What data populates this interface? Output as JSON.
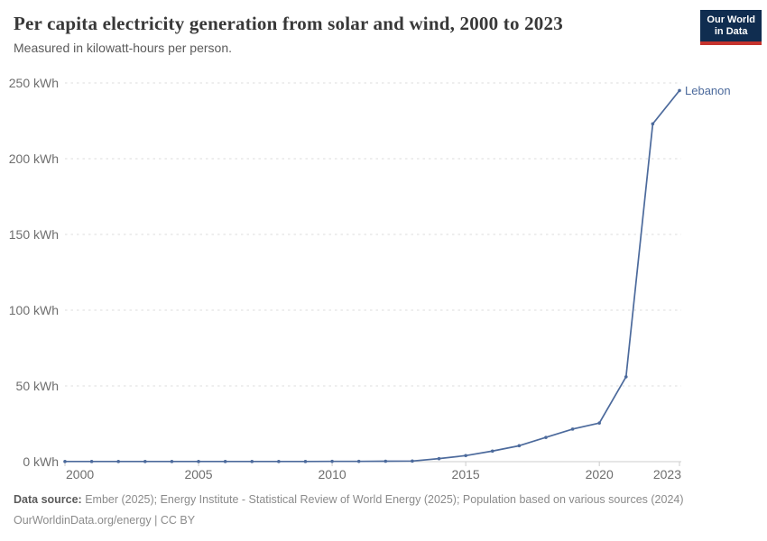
{
  "header": {
    "title": "Per capita electricity generation from solar and wind, 2000 to 2023",
    "subtitle": "Measured in kilowatt-hours per person."
  },
  "logo": {
    "line1": "Our World",
    "line2": "in Data",
    "bg_color": "#102d50",
    "accent_color": "#c5332d"
  },
  "chart_data": {
    "type": "line",
    "title": "Per capita electricity generation from solar and wind, 2000 to 2023",
    "subtitle": "Measured in kilowatt-hours per person.",
    "x": [
      2000,
      2001,
      2002,
      2003,
      2004,
      2005,
      2006,
      2007,
      2008,
      2009,
      2010,
      2011,
      2012,
      2013,
      2014,
      2015,
      2016,
      2017,
      2018,
      2019,
      2020,
      2021,
      2022,
      2023
    ],
    "series": [
      {
        "name": "Lebanon",
        "color": "#4c6a9c",
        "values": [
          0.1,
          0.1,
          0.1,
          0.1,
          0.1,
          0.1,
          0.1,
          0.1,
          0.1,
          0.1,
          0.2,
          0.2,
          0.3,
          0.4,
          2,
          4,
          7,
          10.5,
          16,
          21.5,
          25.5,
          56,
          223,
          245
        ]
      }
    ],
    "xlim": [
      2000,
      2023
    ],
    "ylim": [
      0,
      250
    ],
    "xticks": [
      2000,
      2005,
      2010,
      2015,
      2020,
      2023
    ],
    "yticks": [
      0,
      50,
      100,
      150,
      200,
      250
    ],
    "tick_suffix": " kWh",
    "grid": "horizontal dashed",
    "legend_position": "end-of-line label",
    "axis_color": "#cccccc",
    "gridline_color": "#dddddd",
    "tick_label_color": "#6e6e6e"
  },
  "footer": {
    "data_source_label": "Data source:",
    "data_source_text": "Ember (2025); Energy Institute - Statistical Review of World Energy (2025); Population based on various sources (2024)",
    "url": "OurWorldinData.org/energy",
    "separator": " | ",
    "license": "CC BY"
  }
}
